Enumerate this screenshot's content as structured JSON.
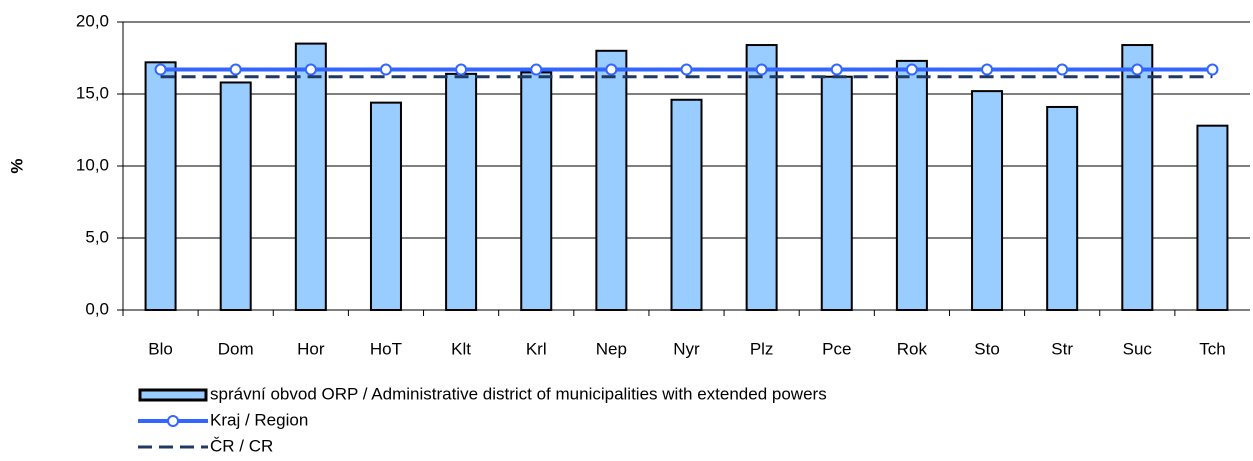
{
  "chart_data": {
    "type": "bar",
    "y_label": "%",
    "categories": [
      "Blo",
      "Dom",
      "Hor",
      "HoT",
      "Klt",
      "Krl",
      "Nep",
      "Nyr",
      "Plz",
      "Pce",
      "Rok",
      "Sto",
      "Str",
      "Suc",
      "Tch"
    ],
    "series": [
      {
        "name": "správní obvod ORP / Administrative district of municipalities with extended powers",
        "type": "bar",
        "color": "#99ccff",
        "values": [
          17.2,
          15.8,
          18.5,
          14.4,
          16.4,
          16.5,
          18.0,
          14.6,
          18.4,
          16.2,
          17.3,
          15.2,
          14.1,
          18.4,
          12.8
        ]
      },
      {
        "name": "Kraj / Region",
        "type": "line",
        "color": "#3366ff",
        "values": [
          16.7,
          16.7,
          16.7,
          16.7,
          16.7,
          16.7,
          16.7,
          16.7,
          16.7,
          16.7,
          16.7,
          16.7,
          16.7,
          16.7,
          16.7
        ]
      },
      {
        "name": "ČR / CR",
        "type": "dashed",
        "color": "#1f3864",
        "values": [
          16.2,
          16.2,
          16.2,
          16.2,
          16.2,
          16.2,
          16.2,
          16.2,
          16.2,
          16.2,
          16.2,
          16.2,
          16.2,
          16.2,
          16.2
        ]
      }
    ],
    "ylim": [
      0,
      20
    ],
    "yticks": [
      {
        "value": 0,
        "label": "0,0"
      },
      {
        "value": 5,
        "label": "5,0"
      },
      {
        "value": 10,
        "label": "10,0"
      },
      {
        "value": 15,
        "label": "15,0"
      },
      {
        "value": 20,
        "label": "20,0"
      }
    ],
    "grid": true
  }
}
